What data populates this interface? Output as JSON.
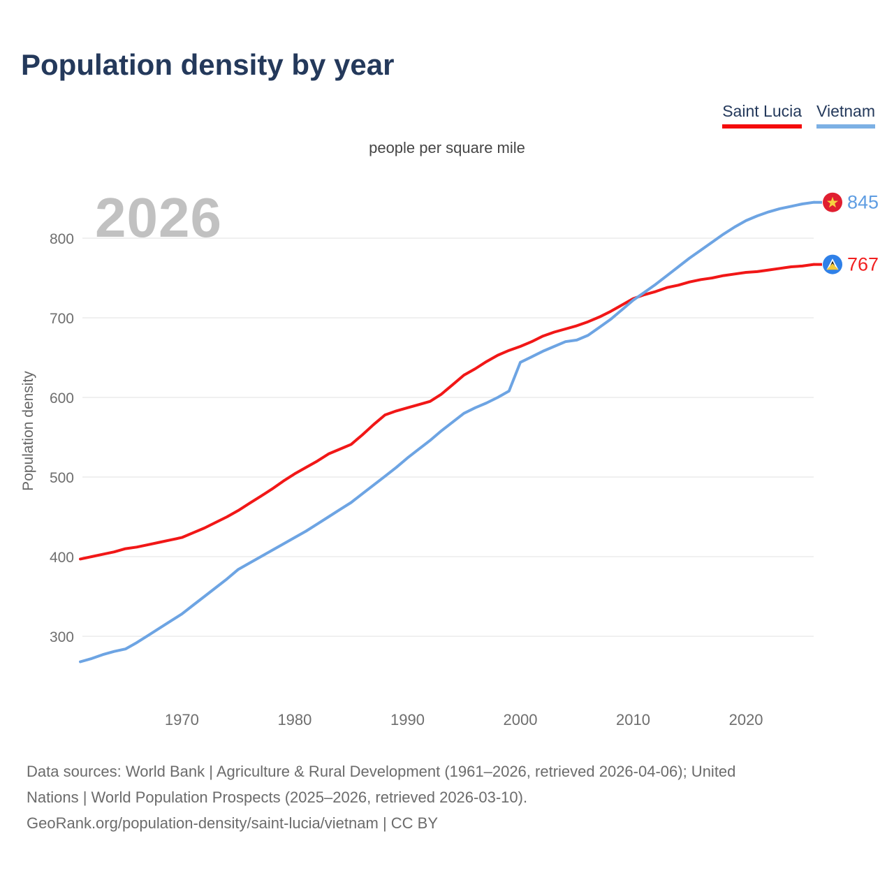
{
  "page": {
    "title": "Population density by year",
    "subtitle": "people per square mile",
    "watermark": "2026",
    "y_axis_label": "Population density"
  },
  "legend": {
    "items": [
      {
        "label": "Saint Lucia",
        "color": "#f40c0c"
      },
      {
        "label": "Vietnam",
        "color": "#7cb0e4"
      }
    ]
  },
  "footer": {
    "lines": [
      "Data sources: World Bank | Agriculture & Rural Development (1961–2026, retrieved 2026-04-06); United",
      "Nations | World Population Prospects (2025–2026, retrieved 2026-03-10).",
      "GeoRank.org/population-density/saint-lucia/vietnam | CC BY"
    ]
  },
  "theme": {
    "title_color": "#24395b",
    "tick_color": "#6e6e6e",
    "grid_color": "#ececec",
    "watermark_color": "#c1c1c1"
  },
  "chart_data": {
    "type": "line",
    "title": "Population density by year",
    "unit": "people per square mile",
    "xlabel": "",
    "ylabel": "Population density",
    "x_ticks": [
      1970,
      1980,
      1990,
      2000,
      2010,
      2020
    ],
    "y_ticks": [
      300,
      400,
      500,
      600,
      700,
      800
    ],
    "xlim": [
      1961,
      2026
    ],
    "ylim": [
      250,
      880
    ],
    "grid": "horizontal-only",
    "legend_position": "top-right",
    "x": [
      1961,
      1962,
      1963,
      1964,
      1965,
      1966,
      1967,
      1968,
      1969,
      1970,
      1971,
      1972,
      1973,
      1974,
      1975,
      1976,
      1977,
      1978,
      1979,
      1980,
      1981,
      1982,
      1983,
      1984,
      1985,
      1986,
      1987,
      1988,
      1989,
      1990,
      1991,
      1992,
      1993,
      1994,
      1995,
      1996,
      1997,
      1998,
      1999,
      2000,
      2001,
      2002,
      2003,
      2004,
      2005,
      2006,
      2007,
      2008,
      2009,
      2010,
      2011,
      2012,
      2013,
      2014,
      2015,
      2016,
      2017,
      2018,
      2019,
      2020,
      2021,
      2022,
      2023,
      2024,
      2025,
      2026
    ],
    "series": [
      {
        "name": "Saint Lucia",
        "color": "#f11717",
        "label_color": "#f12020",
        "end_label": "767",
        "flag": "saint-lucia",
        "flag_colors": {
          "circle": "#2f80e8",
          "triangle_white": "#ffffff",
          "triangle_black": "#1a1a1a",
          "triangle_gold": "#f2c93c"
        },
        "values": [
          397,
          400,
          403,
          406,
          410,
          412,
          415,
          418,
          421,
          424,
          430,
          436,
          443,
          450,
          458,
          467,
          476,
          485,
          495,
          504,
          512,
          520,
          529,
          535,
          541,
          553,
          566,
          578,
          583,
          587,
          591,
          595,
          604,
          616,
          628,
          636,
          645,
          653,
          659,
          664,
          670,
          677,
          682,
          686,
          690,
          695,
          701,
          708,
          716,
          724,
          729,
          733,
          738,
          741,
          745,
          748,
          750,
          753,
          755,
          757,
          758,
          760,
          762,
          764,
          765,
          767
        ]
      },
      {
        "name": "Vietnam",
        "color": "#6da4e3",
        "label_color": "#5f9de2",
        "end_label": "845",
        "flag": "vietnam",
        "flag_colors": {
          "circle": "#e01f30",
          "star": "#f6d341"
        },
        "values": [
          268,
          272,
          277,
          281,
          284,
          292,
          301,
          310,
          319,
          328,
          339,
          350,
          361,
          372,
          384,
          392,
          400,
          408,
          416,
          424,
          432,
          441,
          450,
          459,
          468,
          479,
          490,
          501,
          512,
          524,
          535,
          546,
          558,
          569,
          580,
          587,
          593,
          600,
          608,
          644,
          651,
          658,
          664,
          670,
          672,
          678,
          688,
          698,
          710,
          722,
          732,
          742,
          753,
          764,
          775,
          785,
          795,
          805,
          814,
          822,
          828,
          833,
          837,
          840,
          843,
          845
        ]
      }
    ]
  }
}
